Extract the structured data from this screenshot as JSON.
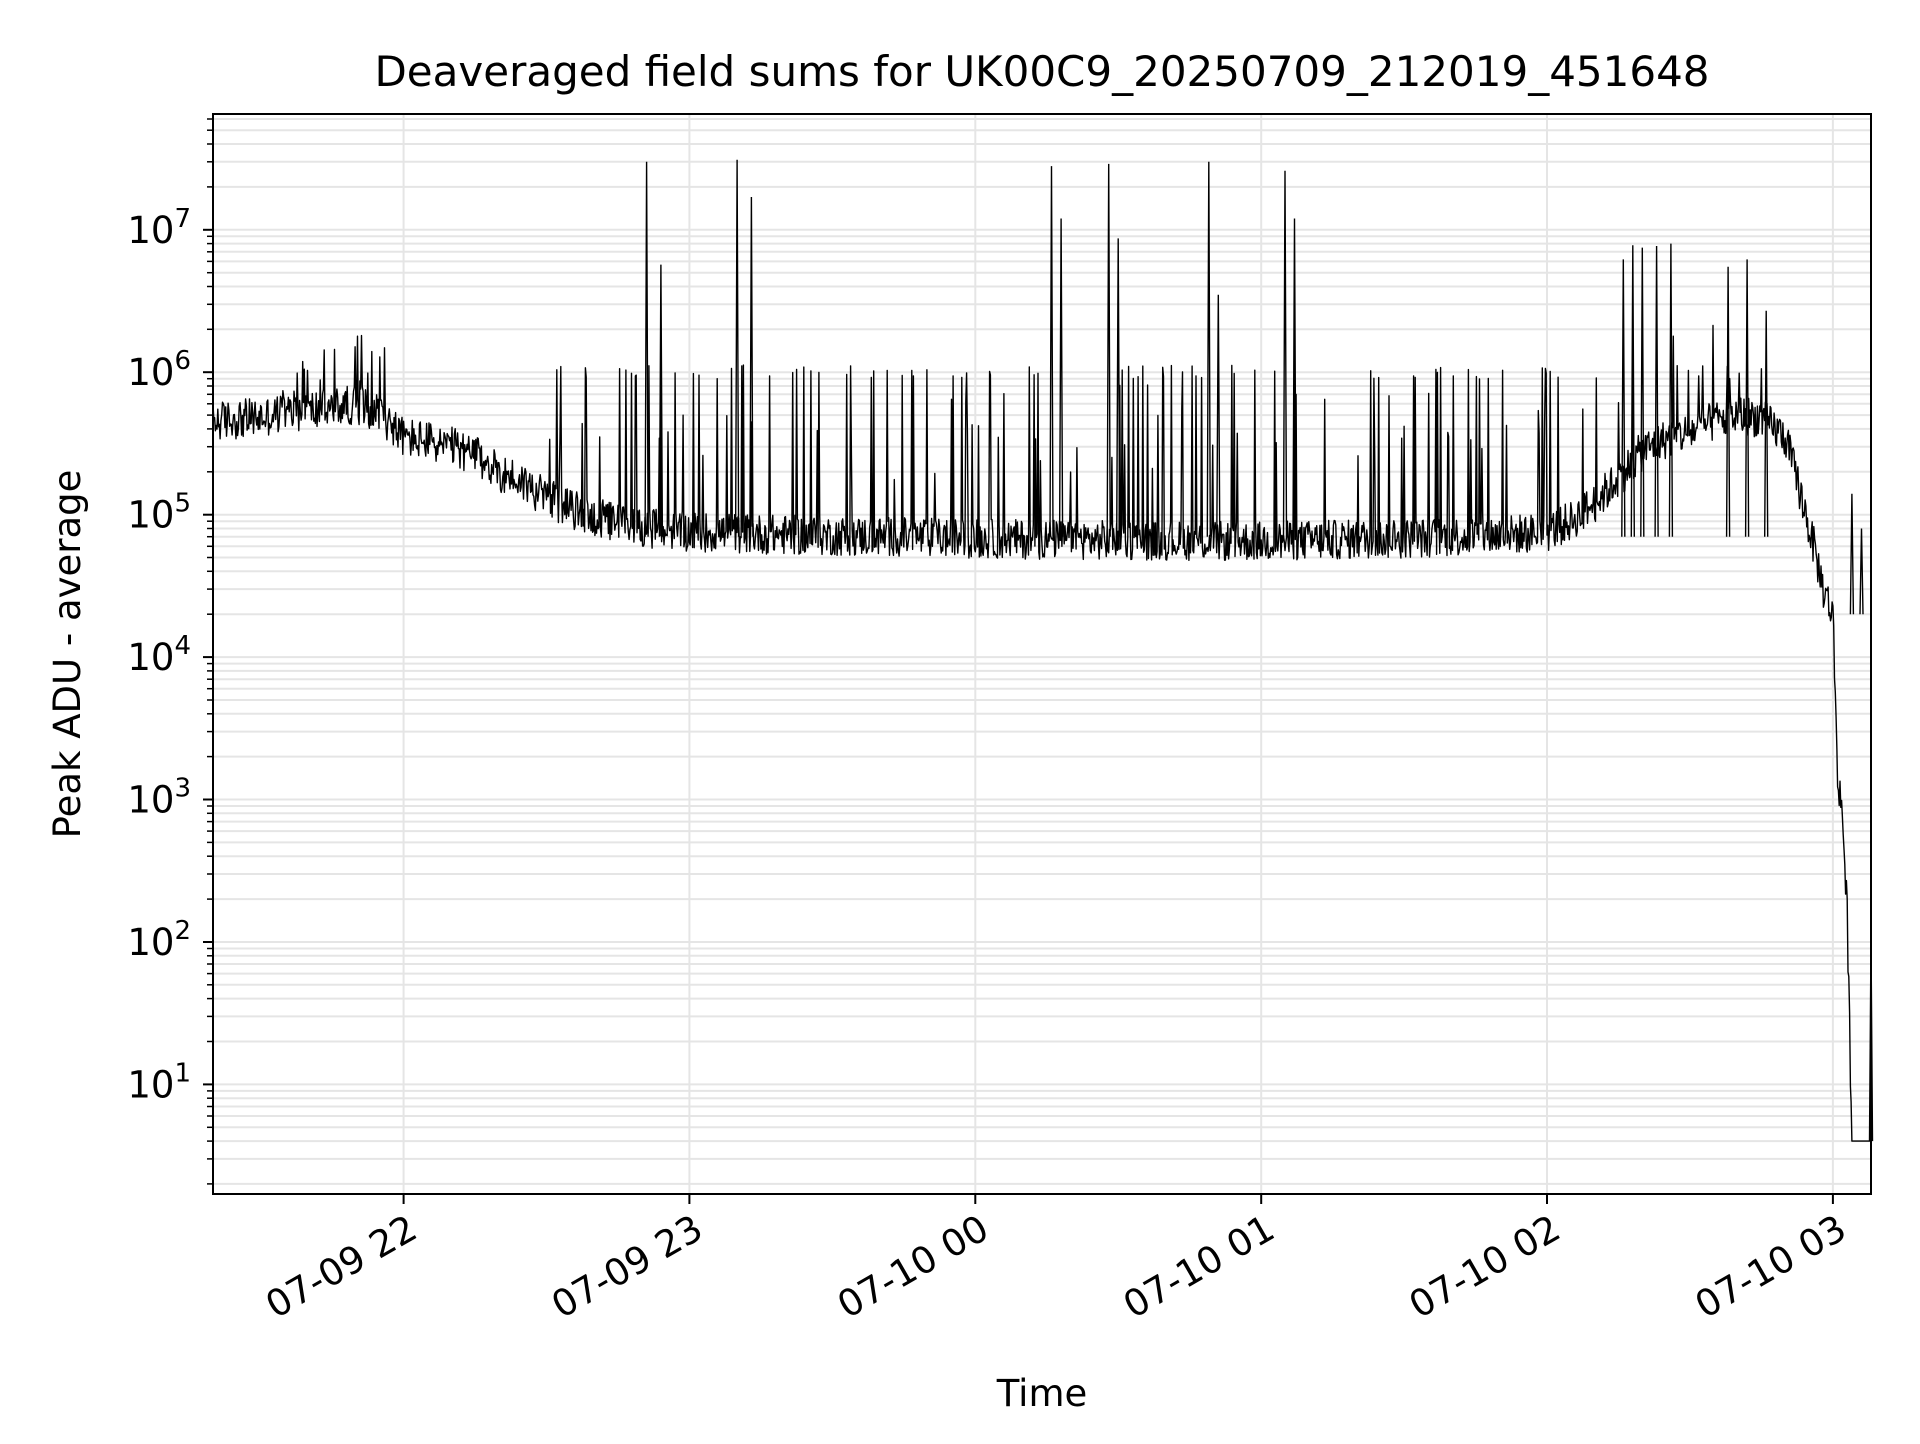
{
  "chart_data": {
    "type": "line",
    "title": "Deaveraged field sums for UK00C9_20250709_212019_451648",
    "xlabel": "Time",
    "ylabel": "Peak ADU - average",
    "yscale": "log",
    "xlim": [
      "07-09 21:20",
      "07-10 03:08"
    ],
    "ylim": [
      1.7,
      65000000
    ],
    "y_ticks": [
      {
        "value": 10,
        "base": "10",
        "exp": "1"
      },
      {
        "value": 100,
        "base": "10",
        "exp": "2"
      },
      {
        "value": 1000,
        "base": "10",
        "exp": "3"
      },
      {
        "value": 10000,
        "base": "10",
        "exp": "4"
      },
      {
        "value": 100000,
        "base": "10",
        "exp": "5"
      },
      {
        "value": 1000000,
        "base": "10",
        "exp": "6"
      },
      {
        "value": 10000000,
        "base": "10",
        "exp": "7"
      }
    ],
    "x_ticks": [
      {
        "time": "07-09 22:00",
        "label": "07-09 22"
      },
      {
        "time": "07-09 23:00",
        "label": "07-09 23"
      },
      {
        "time": "07-10 00:00",
        "label": "07-10 00"
      },
      {
        "time": "07-10 01:00",
        "label": "07-10 01"
      },
      {
        "time": "07-10 02:00",
        "label": "07-10 02"
      },
      {
        "time": "07-10 03:00",
        "label": "07-10 03"
      }
    ],
    "grid": true,
    "line_color": "#000000",
    "series": [
      {
        "x": [
          "07-09 21:20",
          "07-09 21:25",
          "07-09 21:30",
          "07-09 21:35",
          "07-09 21:40",
          "07-09 21:45",
          "07-09 21:50",
          "07-09 21:55",
          "07-09 22:00",
          "07-09 22:05",
          "07-09 22:10",
          "07-09 22:15",
          "07-09 22:20",
          "07-09 22:25",
          "07-09 22:30",
          "07-09 22:35",
          "07-09 22:40",
          "07-09 22:45",
          "07-09 22:50",
          "07-09 22:55",
          "07-09 23:00",
          "07-09 23:10",
          "07-09 23:20",
          "07-09 23:30",
          "07-09 23:40",
          "07-09 23:50",
          "07-10 00:00",
          "07-10 00:10",
          "07-10 00:20",
          "07-10 00:30",
          "07-10 00:40",
          "07-10 00:50",
          "07-10 01:00",
          "07-10 01:10",
          "07-10 01:20",
          "07-10 01:30",
          "07-10 01:40",
          "07-10 01:50",
          "07-10 02:00",
          "07-10 02:05",
          "07-10 02:10",
          "07-10 02:15",
          "07-10 02:20",
          "07-10 02:25",
          "07-10 02:30",
          "07-10 02:35",
          "07-10 02:40",
          "07-10 02:45",
          "07-10 02:50",
          "07-10 02:53",
          "07-10 02:56",
          "07-10 02:58",
          "07-10 03:00",
          "07-10 03:01",
          "07-10 03:02",
          "07-10 03:03",
          "07-10 03:04",
          "07-10 03:05",
          "07-10 03:06",
          "07-10 03:08"
        ],
        "y": [
          450000,
          470000,
          480000,
          520000,
          540000,
          560000,
          600000,
          520000,
          350000,
          330000,
          300000,
          260000,
          200000,
          170000,
          130000,
          110000,
          95000,
          88000,
          82000,
          78000,
          76000,
          74000,
          72000,
          71000,
          70000,
          69000,
          68000,
          67000,
          67000,
          66000,
          66000,
          65000,
          65000,
          66000,
          67000,
          68000,
          70000,
          72000,
          75000,
          90000,
          120000,
          180000,
          280000,
          340000,
          380000,
          450000,
          500000,
          480000,
          350000,
          150000,
          60000,
          30000,
          20000,
          1500,
          800,
          150,
          4,
          4,
          4,
          4
        ]
      }
    ],
    "spikes": [
      {
        "x": "07-09 22:51",
        "y": 30000000
      },
      {
        "x": "07-09 22:54",
        "y": 5700000
      },
      {
        "x": "07-09 23:10",
        "y": 31000000
      },
      {
        "x": "07-09 23:13",
        "y": 17000000
      },
      {
        "x": "07-10 00:16",
        "y": 28000000
      },
      {
        "x": "07-10 00:18",
        "y": 12000000
      },
      {
        "x": "07-10 00:28",
        "y": 29000000
      },
      {
        "x": "07-10 00:30",
        "y": 8700000
      },
      {
        "x": "07-10 00:49",
        "y": 30000000
      },
      {
        "x": "07-10 00:51",
        "y": 3500000
      },
      {
        "x": "07-10 01:05",
        "y": 26000000
      },
      {
        "x": "07-10 01:07",
        "y": 12000000
      },
      {
        "x": "07-10 02:16",
        "y": 6200000
      },
      {
        "x": "07-10 02:18",
        "y": 7800000
      },
      {
        "x": "07-10 02:20",
        "y": 7500000
      },
      {
        "x": "07-10 02:23",
        "y": 7700000
      },
      {
        "x": "07-10 02:26",
        "y": 8000000
      },
      {
        "x": "07-10 02:38",
        "y": 5500000
      },
      {
        "x": "07-10 02:42",
        "y": 6200000
      },
      {
        "x": "07-10 02:46",
        "y": 2700000
      },
      {
        "x": "07-10 03:04",
        "y": 140000
      },
      {
        "x": "07-10 03:06",
        "y": 80000
      },
      {
        "x": "07-10 03:08",
        "y": 105
      }
    ]
  }
}
